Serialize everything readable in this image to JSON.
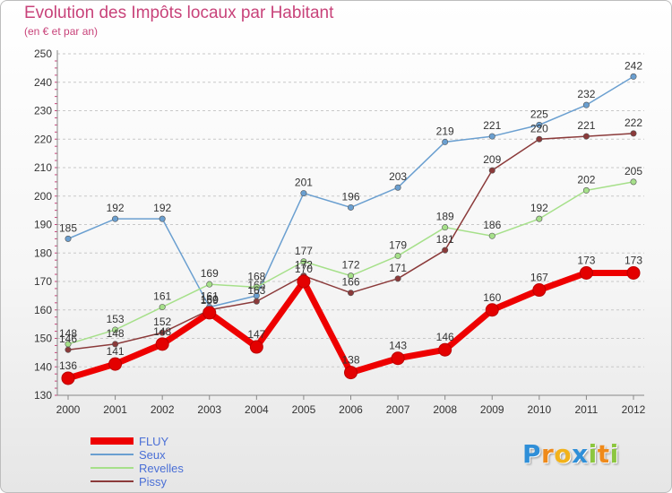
{
  "chart_data": {
    "type": "line",
    "title": "Evolution des Impôts locaux par Habitant",
    "subtitle": "(en € et par an)",
    "x": [
      "2000",
      "2001",
      "2002",
      "2003",
      "2004",
      "2005",
      "2006",
      "2007",
      "2008",
      "2009",
      "2010",
      "2011",
      "2012"
    ],
    "ylim": [
      130,
      250
    ],
    "yticks": [
      130,
      140,
      150,
      160,
      170,
      180,
      190,
      200,
      210,
      220,
      230,
      240,
      250
    ],
    "grid": "horizontal dashed",
    "legend_position": "bottom-left",
    "series": [
      {
        "name": "Seux",
        "color": "#6a9fd0",
        "values": [
          185,
          192,
          192,
          161,
          165,
          201,
          196,
          203,
          219,
          221,
          225,
          232,
          242
        ]
      },
      {
        "name": "Revelles",
        "color": "#a6e08a",
        "values": [
          148,
          153,
          161,
          169,
          168,
          177,
          172,
          179,
          189,
          186,
          192,
          202,
          205
        ]
      },
      {
        "name": "Pissy",
        "color": "#8b3a3a",
        "values": [
          146,
          148,
          152,
          160,
          163,
          172,
          166,
          171,
          181,
          209,
          220,
          221,
          222
        ]
      },
      {
        "name": "FLUY",
        "color": "#ee0000",
        "values": [
          136,
          141,
          148,
          159,
          147,
          170,
          138,
          143,
          146,
          160,
          167,
          173,
          173
        ]
      }
    ]
  },
  "legend": [
    {
      "name": "FLUY",
      "color": "#ee0000",
      "thickness": "thick"
    },
    {
      "name": "Seux",
      "color": "#6a9fd0",
      "thickness": "thin"
    },
    {
      "name": "Revelles",
      "color": "#a6e08a",
      "thickness": "thin"
    },
    {
      "name": "Pissy",
      "color": "#8b3a3a",
      "thickness": "thin"
    }
  ],
  "logo": {
    "text": "Proxiti",
    "letters": [
      {
        "ch": "P",
        "color": "#2f8fd8"
      },
      {
        "ch": "r",
        "color": "#ef8a1a"
      },
      {
        "ch": "o",
        "color": "#f2b21a"
      },
      {
        "ch": "x",
        "color": "#2f8fd8"
      },
      {
        "ch": "i",
        "color": "#8cc63f"
      },
      {
        "ch": "t",
        "color": "#ef8a1a"
      },
      {
        "ch": "i",
        "color": "#8cc63f"
      }
    ]
  }
}
